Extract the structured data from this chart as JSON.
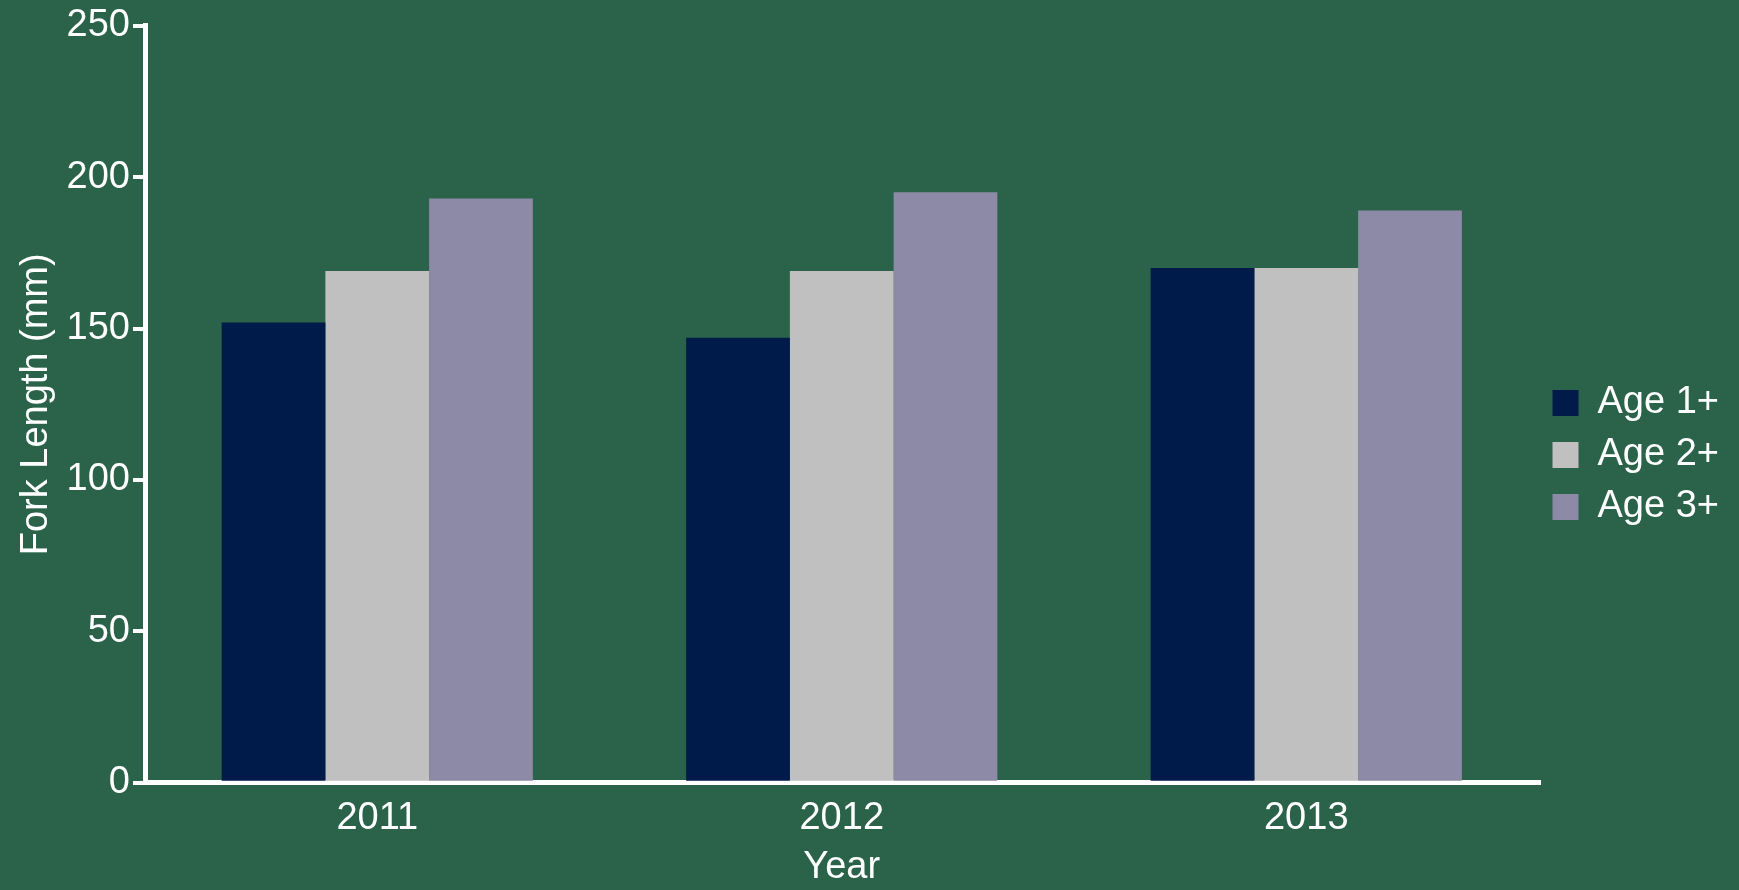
{
  "chart_data": {
    "type": "bar",
    "xlabel": "Year",
    "ylabel": "Fork Length (mm)",
    "categories": [
      "2011",
      "2012",
      "2013"
    ],
    "series": [
      {
        "name": "Age 1+",
        "color": "#001a4a",
        "values": [
          152,
          147,
          170
        ]
      },
      {
        "name": "Age 2+",
        "color": "#c0c0c0",
        "values": [
          169,
          169,
          170
        ]
      },
      {
        "name": "Age 3+",
        "color": "#8c8aa6",
        "values": [
          193,
          195,
          189
        ]
      }
    ],
    "ylim": [
      0,
      250
    ],
    "yticks": [
      0,
      50,
      100,
      150,
      200,
      250
    ],
    "grid": false,
    "legend": "right"
  }
}
